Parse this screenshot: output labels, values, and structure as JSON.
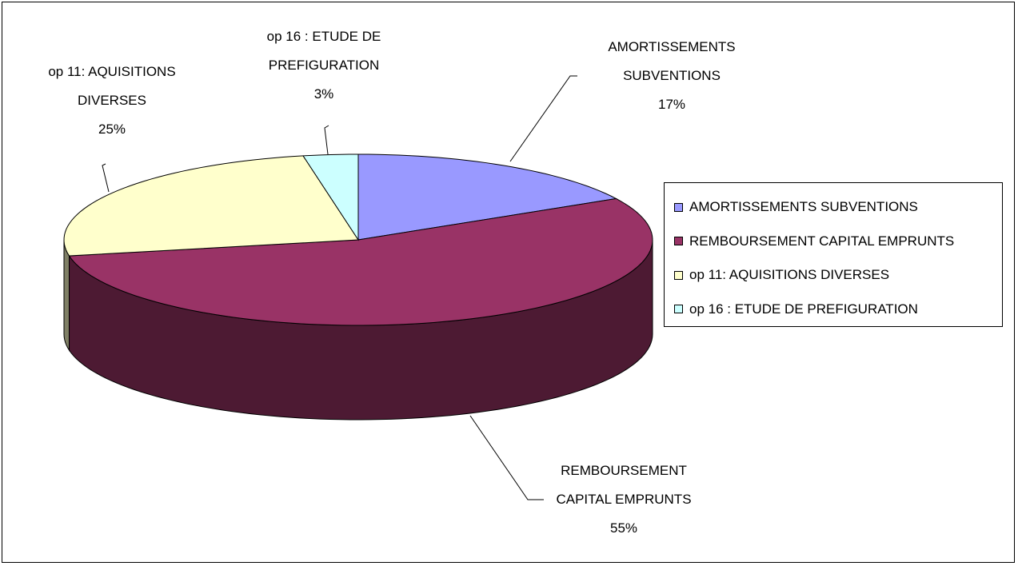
{
  "chart_data": {
    "type": "pie",
    "categories": [
      "AMORTISSEMENTS SUBVENTIONS",
      "REMBOURSEMENT CAPITAL EMPRUNTS",
      "op 11: AQUISITIONS DIVERSES",
      "op 16 : ETUDE DE PREFIGURATION"
    ],
    "values": [
      17,
      55,
      25,
      3
    ],
    "value_labels": [
      "17%",
      "55%",
      "25%",
      "3%"
    ],
    "colors": [
      "#9999ff",
      "#993366",
      "#ffffcc",
      "#ccffff"
    ],
    "legend": "right"
  }
}
